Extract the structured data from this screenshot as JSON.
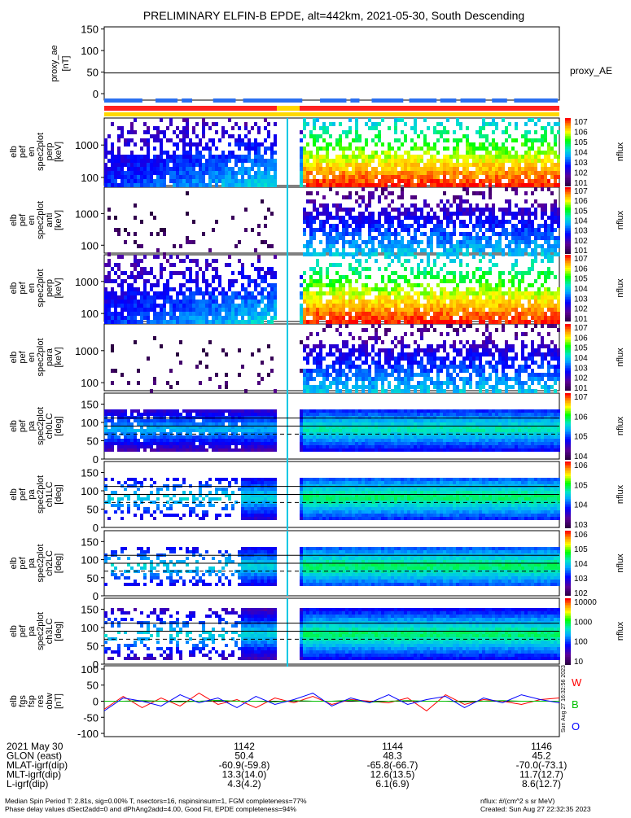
{
  "title": "PRELIMINARY ELFIN-B EPDE, alt=442km, 2021-05-30, South Descending",
  "panels": [
    {
      "id": "proxy",
      "ylabel": [
        "proxy_ae",
        "[nT]"
      ],
      "yticks": [
        "150",
        "100",
        "50",
        "0"
      ],
      "right_label": "proxy_AE"
    },
    {
      "id": "en_perp",
      "ylabel": [
        "elb",
        "pef",
        "en",
        "spec2plot",
        "perp",
        "[keV]"
      ],
      "yticks": [
        "1000",
        "100"
      ],
      "cbar_ticks": [
        "10^7",
        "10^6",
        "10^5",
        "10^4",
        "10^3",
        "10^2",
        "10^1"
      ],
      "cbar_label": "nflux"
    },
    {
      "id": "en_anti",
      "ylabel": [
        "elb",
        "pef",
        "en",
        "spec2plot",
        "anti",
        "[keV]"
      ],
      "yticks": [
        "1000",
        "100"
      ],
      "cbar_ticks": [
        "10^7",
        "10^6",
        "10^5",
        "10^4",
        "10^3",
        "10^2",
        "10^1"
      ],
      "cbar_label": "nflux"
    },
    {
      "id": "en_perp2",
      "ylabel": [
        "elb",
        "pef",
        "en",
        "spec2plot",
        "perp",
        "[keV]"
      ],
      "yticks": [
        "1000",
        "100"
      ],
      "cbar_ticks": [
        "10^7",
        "10^6",
        "10^5",
        "10^4",
        "10^3",
        "10^2",
        "10^1"
      ],
      "cbar_label": "nflux"
    },
    {
      "id": "en_para",
      "ylabel": [
        "elb",
        "pef",
        "en",
        "spec2plot",
        "para",
        "[keV]"
      ],
      "yticks": [
        "1000",
        "100"
      ],
      "cbar_ticks": [
        "10^7",
        "10^6",
        "10^5",
        "10^4",
        "10^3",
        "10^2",
        "10^1"
      ],
      "cbar_label": "nflux"
    },
    {
      "id": "ch0",
      "ylabel": [
        "elb",
        "pef",
        "pa",
        "spec2plot",
        "ch0LC",
        "[deg]"
      ],
      "yticks": [
        "150",
        "100",
        "50",
        "0"
      ],
      "cbar_ticks": [
        "10^7",
        "10^6",
        "10^5",
        "10^4"
      ],
      "cbar_label": "nflux"
    },
    {
      "id": "ch1",
      "ylabel": [
        "elb",
        "pef",
        "pa",
        "spec2plot",
        "ch1LC",
        "[deg]"
      ],
      "yticks": [
        "150",
        "100",
        "50",
        "0"
      ],
      "cbar_ticks": [
        "10^6",
        "10^5",
        "10^4",
        "10^3"
      ],
      "cbar_label": "nflux"
    },
    {
      "id": "ch2",
      "ylabel": [
        "elb",
        "pef",
        "pa",
        "spec2plot",
        "ch2LC",
        "[deg]"
      ],
      "yticks": [
        "150",
        "100",
        "50",
        "0"
      ],
      "cbar_ticks": [
        "10^6",
        "10^5",
        "10^4",
        "10^3",
        "10^2"
      ],
      "cbar_label": "nflux"
    },
    {
      "id": "ch3",
      "ylabel": [
        "elb",
        "pef",
        "pa",
        "spec2plot",
        "ch3LC",
        "[deg]"
      ],
      "yticks": [
        "150",
        "100",
        "50",
        "0"
      ],
      "cbar_ticks": [
        "10000",
        "1000",
        "100",
        "10"
      ],
      "cbar_label": "nflux"
    },
    {
      "id": "dbw",
      "ylabel": [
        "elb",
        "fgs",
        "fsp",
        "res",
        "obw",
        "[nT]"
      ],
      "yticks": [
        "100",
        "50",
        "0",
        "-50",
        "-100"
      ],
      "legend": [
        "W",
        "B",
        "O"
      ]
    }
  ],
  "footer": {
    "rows": [
      [
        "2021 May 30",
        "1142",
        "1144",
        "1146"
      ],
      [
        "GLON (east)",
        "50.4",
        "48.3",
        "45.2"
      ],
      [
        "MLAT-igrf(dip)",
        "-60.9(-59.8)",
        "-65.8(-66.7)",
        "-70.0(-73.1)"
      ],
      [
        "MLT-igrf(dip)",
        "13.3(14.0)",
        "12.6(13.5)",
        "11.7(12.7)"
      ],
      [
        "L-igrf(dip)",
        "4.3(4.2)",
        "6.1(6.9)",
        "8.6(12.7)"
      ]
    ],
    "note1": "Median Spin Period T: 2.81s, sig=0.00% T, nsectors=16, nspinsinsum=1, FGM completeness=77%",
    "note2": "Phase delay values dSect2add=0 and dPhAng2add=4.00, Good Fit, EPDE completeness=94%",
    "units": "nflux: #/(cm^2 s sr MeV)",
    "created": "Created: Sun Aug 27 22:32:35 2023",
    "side_stamp": "Sun Aug 27 16:32:56 2023"
  },
  "chart_data": [
    {
      "type": "line",
      "title": "PRELIMINARY ELFIN-B EPDE, alt=442km, 2021-05-30, South Descending",
      "ylabel": "proxy_ae [nT]",
      "ylim": [
        -15,
        155
      ],
      "x": [
        "1141.2",
        "1146.4"
      ],
      "values": [
        48,
        48
      ],
      "series": [
        {
          "name": "proxy_AE",
          "values": [
            48,
            48
          ]
        }
      ]
    },
    {
      "type": "heatmap",
      "ylabel": "elb pef en spec2plot perp [keV]",
      "yscale": "log",
      "ylim": [
        60,
        7000
      ],
      "colorbar": "nflux",
      "colorbar_range": [
        "10^1",
        "10^7"
      ]
    },
    {
      "type": "heatmap",
      "ylabel": "elb pef en spec2plot anti [keV]",
      "yscale": "log",
      "ylim": [
        60,
        7000
      ],
      "colorbar": "nflux",
      "colorbar_range": [
        "10^1",
        "10^7"
      ]
    },
    {
      "type": "heatmap",
      "ylabel": "elb pef en spec2plot perp [keV]",
      "yscale": "log",
      "ylim": [
        60,
        7000
      ],
      "colorbar": "nflux",
      "colorbar_range": [
        "10^1",
        "10^7"
      ]
    },
    {
      "type": "heatmap",
      "ylabel": "elb pef en spec2plot para [keV]",
      "yscale": "log",
      "ylim": [
        60,
        7000
      ],
      "colorbar": "nflux",
      "colorbar_range": [
        "10^1",
        "10^7"
      ]
    },
    {
      "type": "heatmap",
      "ylabel": "elb pef pa spec2plot ch0LC [deg]",
      "ylim": [
        0,
        180
      ],
      "colorbar": "nflux",
      "colorbar_range": [
        "10^4",
        "10^7"
      ]
    },
    {
      "type": "heatmap",
      "ylabel": "elb pef pa spec2plot ch1LC [deg]",
      "ylim": [
        0,
        180
      ],
      "colorbar": "nflux",
      "colorbar_range": [
        "10^3",
        "10^6"
      ]
    },
    {
      "type": "heatmap",
      "ylabel": "elb pef pa spec2plot ch2LC [deg]",
      "ylim": [
        0,
        180
      ],
      "colorbar": "nflux",
      "colorbar_range": [
        "10^2",
        "10^6"
      ]
    },
    {
      "type": "heatmap",
      "ylabel": "elb pef pa spec2plot ch3LC [deg]",
      "ylim": [
        0,
        180
      ],
      "colorbar": "nflux",
      "colorbar_range": [
        "10",
        "10000"
      ]
    },
    {
      "type": "line",
      "ylabel": "elb fgs fsp res obw [nT]",
      "ylim": [
        -110,
        110
      ],
      "series": [
        {
          "name": "W",
          "color": "#ff0000",
          "values": [
            -25,
            15,
            -20,
            10,
            -15,
            25,
            -10,
            5,
            -20,
            10,
            -5,
            15,
            -10,
            5,
            0,
            -5,
            10,
            -30,
            20,
            -10,
            5,
            0,
            -10,
            5,
            10
          ]
        },
        {
          "name": "B",
          "color": "#00c000",
          "values": [
            0,
            0,
            2,
            0,
            -2,
            0,
            3,
            0,
            0,
            -2,
            2,
            0,
            0,
            3,
            -3,
            0,
            2,
            0,
            0,
            -2,
            0,
            2,
            0,
            0,
            0
          ]
        },
        {
          "name": "O",
          "color": "#0000ff",
          "values": [
            -30,
            10,
            0,
            -15,
            20,
            -5,
            10,
            -20,
            15,
            -10,
            5,
            25,
            -15,
            10,
            -5,
            20,
            -10,
            5,
            15,
            -20,
            10,
            -5,
            20,
            5,
            -5
          ]
        }
      ]
    }
  ],
  "colors": {
    "orbit_blue": "#2a6ff0",
    "orbit_red": "#ff2020",
    "orbit_yellow": "#ffd800"
  }
}
